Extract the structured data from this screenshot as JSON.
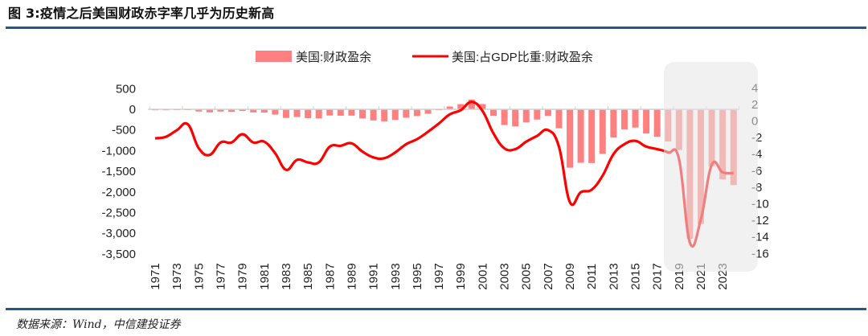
{
  "title": "图 3:疫情之后美国财政赤字率几乎为历史新高",
  "source": "数据来源：Wind，中信建投证券",
  "colors": {
    "bar": "#ff8080",
    "line": "#ff0000",
    "highlight_box": "#e6e6e6",
    "rule": "#1f5a8a"
  },
  "chart_data": {
    "type": "bar+line",
    "title": "图 3:疫情之后美国财政赤字率几乎为历史新高",
    "legend_position": "top-center",
    "legend": [
      "美国:财政盈余",
      "美国:占GDP比重:财政盈余"
    ],
    "x": [
      1971,
      1972,
      1973,
      1974,
      1975,
      1976,
      1977,
      1978,
      1979,
      1980,
      1981,
      1982,
      1983,
      1984,
      1985,
      1986,
      1987,
      1988,
      1989,
      1990,
      1991,
      1992,
      1993,
      1994,
      1995,
      1996,
      1997,
      1998,
      1999,
      2000,
      2001,
      2002,
      2003,
      2004,
      2005,
      2006,
      2007,
      2008,
      2009,
      2010,
      2011,
      2012,
      2013,
      2014,
      2015,
      2016,
      2017,
      2018,
      2019,
      2020,
      2021,
      2022,
      2023,
      2024
    ],
    "x_tick_labels": [
      "1971",
      "1973",
      "1975",
      "1977",
      "1979",
      "1981",
      "1983",
      "1985",
      "1987",
      "1989",
      "1991",
      "1993",
      "1995",
      "1997",
      "1999",
      "2001",
      "2003",
      "2005",
      "2007",
      "2009",
      "2011",
      "2013",
      "2015",
      "2017",
      "2019",
      "2021",
      "2023"
    ],
    "series": [
      {
        "name": "美国:财政盈余",
        "type": "bar",
        "axis": "left",
        "values": [
          -23,
          -23,
          -15,
          -6,
          -53,
          -74,
          -54,
          -59,
          -41,
          -74,
          -79,
          -128,
          -208,
          -185,
          -212,
          -221,
          -150,
          -155,
          -153,
          -221,
          -269,
          -290,
          -255,
          -203,
          -164,
          -107,
          -22,
          69,
          126,
          236,
          128,
          -158,
          -378,
          -413,
          -318,
          -248,
          -161,
          -459,
          -1413,
          -1294,
          -1300,
          -1077,
          -680,
          -485,
          -442,
          -585,
          -665,
          -779,
          -984,
          -3132,
          -2775,
          -1376,
          -1695,
          -1833
        ]
      },
      {
        "name": "美国:占GDP比重:财政盈余",
        "type": "line",
        "axis": "right",
        "values": [
          -2.1,
          -1.9,
          -1.1,
          -0.4,
          -3.3,
          -4.1,
          -2.6,
          -2.6,
          -1.6,
          -2.6,
          -2.5,
          -3.9,
          -5.9,
          -4.7,
          -5.0,
          -5.0,
          -3.1,
          -3.0,
          -2.7,
          -3.7,
          -4.4,
          -4.5,
          -3.8,
          -2.8,
          -2.2,
          -1.3,
          -0.3,
          0.8,
          1.3,
          2.3,
          1.2,
          -1.5,
          -3.3,
          -3.4,
          -2.5,
          -1.8,
          -1.1,
          -3.1,
          -9.8,
          -8.6,
          -8.3,
          -6.6,
          -4.0,
          -2.8,
          -2.4,
          -3.1,
          -3.4,
          -3.8,
          -4.6,
          -14.7,
          -11.9,
          -5.3,
          -6.2,
          -6.3
        ]
      }
    ],
    "y_left": {
      "ylim": [
        -3500,
        500
      ],
      "ticks": [
        "500",
        "0",
        "-500",
        "-1,000",
        "-1,500",
        "-2,000",
        "-2,500",
        "-3,000",
        "-3,500"
      ],
      "tick_values": [
        500,
        0,
        -500,
        -1000,
        -1500,
        -2000,
        -2500,
        -3000,
        -3500
      ]
    },
    "y_right": {
      "ylim": [
        -16,
        4
      ],
      "ticks": [
        "4",
        "2",
        "0",
        "-2",
        "-4",
        "-6",
        "-8",
        "-10",
        "-12",
        "-14",
        "-16"
      ],
      "tick_values": [
        4,
        2,
        0,
        -2,
        -4,
        -6,
        -8,
        -10,
        -12,
        -14,
        -16
      ]
    },
    "highlight_range": [
      2018,
      2024
    ],
    "grid": false
  }
}
